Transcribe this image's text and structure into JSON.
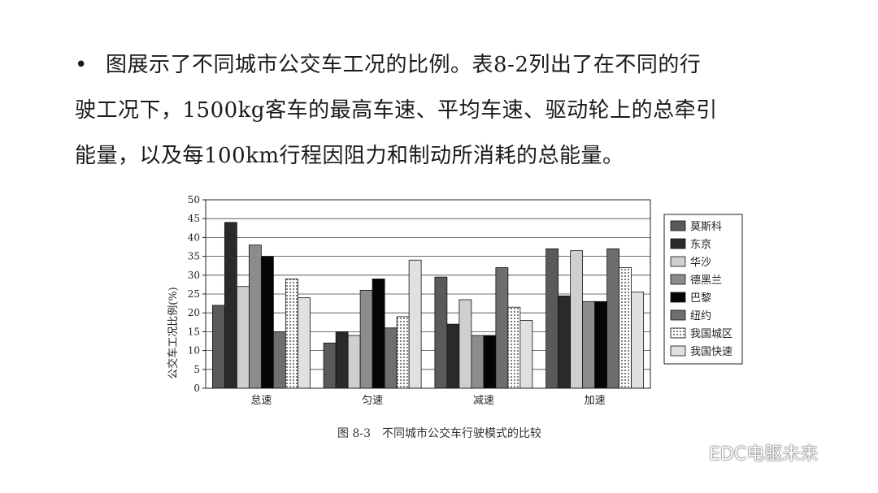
{
  "intro": {
    "bullet": "•",
    "lines": [
      "图展示了不同城市公交车工况的比例。表8-2列出了在不同的行",
      "驶工况下，1500kg客车的最高车速、平均车速、驱动轮上的总牵引",
      "能量，以及每100km行程因阻力和制动所消耗的总能量。"
    ]
  },
  "chart_data": {
    "type": "bar",
    "caption": "图 8-3　不同城市公交车行驶模式的比较",
    "ylabel": "公交车工况比例(%)",
    "xlabel": "",
    "ylim": [
      0,
      50
    ],
    "yticks": [
      0,
      5,
      10,
      15,
      20,
      25,
      30,
      35,
      40,
      45,
      50
    ],
    "grid": "horizontal",
    "legend": "right",
    "categories": [
      "怠速",
      "匀速",
      "减速",
      "加速"
    ],
    "series": [
      {
        "name": "莫斯科",
        "values": [
          22,
          12,
          29.5,
          37
        ],
        "fill": "#5a5a5a",
        "pattern": "solid"
      },
      {
        "name": "东京",
        "values": [
          44,
          15,
          17,
          24.5
        ],
        "fill": "#2a2a2a",
        "pattern": "solid"
      },
      {
        "name": "华沙",
        "values": [
          27,
          14,
          23.5,
          36.5
        ],
        "fill": "#cfcfcf",
        "pattern": "solid"
      },
      {
        "name": "德黑兰",
        "values": [
          38,
          26,
          14,
          23
        ],
        "fill": "#8c8c8c",
        "pattern": "solid"
      },
      {
        "name": "巴黎",
        "values": [
          35,
          29,
          14,
          23
        ],
        "fill": "#050505",
        "pattern": "solid"
      },
      {
        "name": "纽约",
        "values": [
          15,
          16,
          32,
          37
        ],
        "fill": "#6e6e6e",
        "pattern": "solid"
      },
      {
        "name": "我国城区",
        "values": [
          29,
          19,
          21.5,
          32
        ],
        "fill": "#ffffff",
        "pattern": "dots"
      },
      {
        "name": "我国快速",
        "values": [
          24,
          34,
          18,
          25.5
        ],
        "fill": "#e0e0e0",
        "pattern": "solid"
      }
    ]
  },
  "watermark": {
    "icon": "wechat-icon",
    "text": "EDC电驱未来"
  }
}
